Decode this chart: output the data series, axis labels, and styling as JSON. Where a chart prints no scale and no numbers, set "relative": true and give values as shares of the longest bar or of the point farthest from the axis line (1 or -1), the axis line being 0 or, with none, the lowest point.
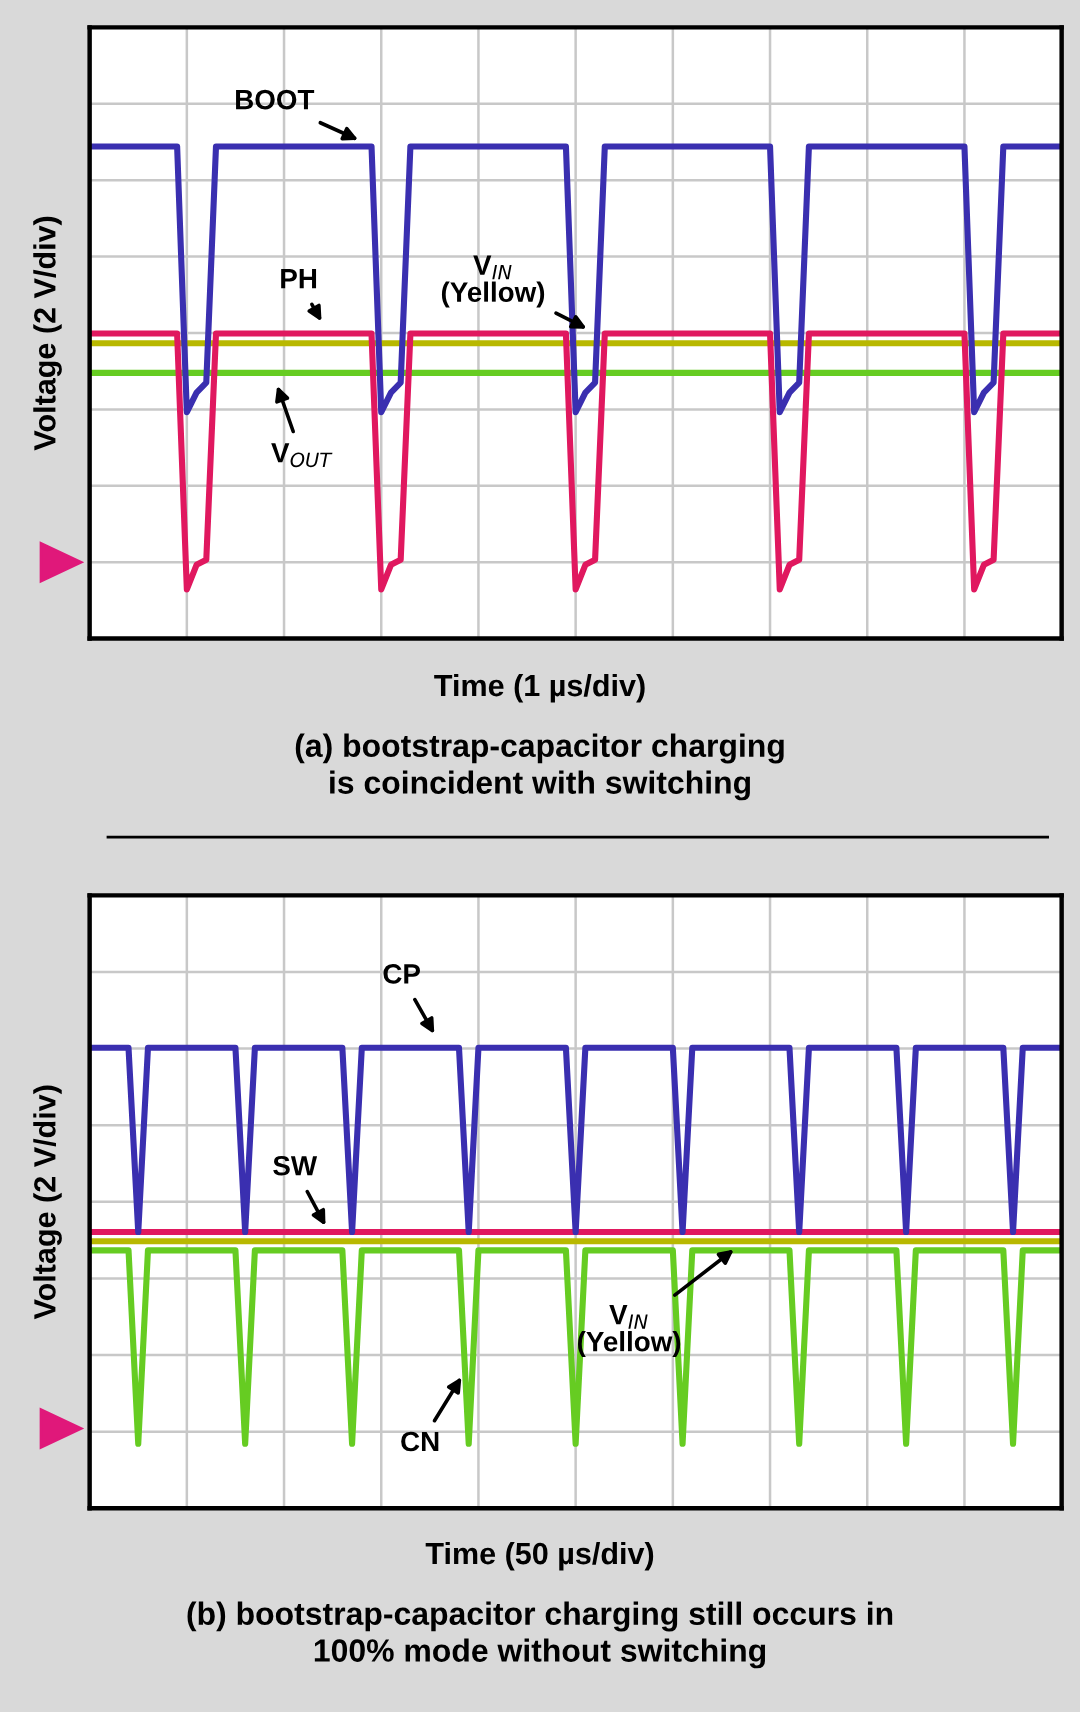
{
  "chart_data": [
    {
      "type": "line",
      "relative": true,
      "grid": true,
      "tick_labels": false,
      "title": "(a) bootstrap-capacitor charging\nis coincident with switching",
      "xlabel": "Time (1 µs/div)",
      "ylabel": "Voltage (2 V/div)",
      "categories": [
        null,
        null,
        null,
        null,
        null,
        null,
        null,
        null,
        null,
        null,
        null,
        null,
        null,
        null,
        null,
        null,
        null,
        null,
        null,
        null,
        null,
        null,
        null,
        null,
        null,
        null,
        null,
        null,
        null,
        null,
        null,
        null,
        null,
        null,
        null,
        null,
        null,
        null,
        null,
        null,
        null,
        null,
        null,
        null,
        null,
        null,
        null,
        null,
        null,
        null,
        null,
        null,
        null,
        null,
        null,
        null,
        null,
        null,
        null,
        null,
        null,
        null,
        null,
        null,
        null,
        null,
        null,
        null,
        null,
        null,
        null,
        null,
        null,
        null,
        null,
        null,
        null,
        null,
        null,
        null,
        null,
        null,
        null,
        null,
        null,
        null,
        null,
        null,
        null,
        null,
        null,
        null,
        null,
        null,
        null,
        null,
        null,
        null,
        null,
        null,
        null
      ],
      "series": [
        {
          "name": "V$_{IN}$\n(Yellow)",
          "color": "#b8b800",
          "values": [
            0.6,
            0.6,
            0.6,
            0.6,
            0.6,
            0.6,
            0.6,
            0.6,
            0.6,
            0.6,
            0.6,
            0.6,
            0.6,
            0.6,
            0.6,
            0.6,
            0.6,
            0.6,
            0.6,
            0.6,
            0.6,
            0.6,
            0.6,
            0.6,
            0.6,
            0.6,
            0.6,
            0.6,
            0.6,
            0.6,
            0.6,
            0.6,
            0.6,
            0.6,
            0.6,
            0.6,
            0.6,
            0.6,
            0.6,
            0.6,
            0.6,
            0.6,
            0.6,
            0.6,
            0.6,
            0.6,
            0.6,
            0.6,
            0.6,
            0.6,
            0.6,
            0.6,
            0.6,
            0.6,
            0.6,
            0.6,
            0.6,
            0.6,
            0.6,
            0.6,
            0.6,
            0.6,
            0.6,
            0.6,
            0.6,
            0.6,
            0.6,
            0.6,
            0.6,
            0.6,
            0.6,
            0.6,
            0.6,
            0.6,
            0.6,
            0.6,
            0.6,
            0.6,
            0.6,
            0.6,
            0.6,
            0.6,
            0.6,
            0.6,
            0.6,
            0.6,
            0.6,
            0.6,
            0.6,
            0.6,
            0.6,
            0.6,
            0.6,
            0.6,
            0.6,
            0.6,
            0.6,
            0.6,
            0.6,
            0.6,
            0.6
          ]
        },
        {
          "name": "V$_{OUT}$",
          "color": "#66cc22",
          "values": [
            0.54,
            0.54,
            0.54,
            0.54,
            0.54,
            0.54,
            0.54,
            0.54,
            0.54,
            0.54,
            0.54,
            0.54,
            0.54,
            0.54,
            0.54,
            0.54,
            0.54,
            0.54,
            0.54,
            0.54,
            0.54,
            0.54,
            0.54,
            0.54,
            0.54,
            0.54,
            0.54,
            0.54,
            0.54,
            0.54,
            0.54,
            0.54,
            0.54,
            0.54,
            0.54,
            0.54,
            0.54,
            0.54,
            0.54,
            0.54,
            0.54,
            0.54,
            0.54,
            0.54,
            0.54,
            0.54,
            0.54,
            0.54,
            0.54,
            0.54,
            0.54,
            0.54,
            0.54,
            0.54,
            0.54,
            0.54,
            0.54,
            0.54,
            0.54,
            0.54,
            0.54,
            0.54,
            0.54,
            0.54,
            0.54,
            0.54,
            0.54,
            0.54,
            0.54,
            0.54,
            0.54,
            0.54,
            0.54,
            0.54,
            0.54,
            0.54,
            0.54,
            0.54,
            0.54,
            0.54,
            0.54,
            0.54,
            0.54,
            0.54,
            0.54,
            0.54,
            0.54,
            0.54,
            0.54,
            0.54,
            0.54,
            0.54,
            0.54,
            0.54,
            0.54,
            0.54,
            0.54,
            0.54,
            0.54,
            0.54,
            0.54
          ]
        },
        {
          "name": "BOOT",
          "color": "#3a2fb0",
          "values": [
            1,
            1,
            1,
            1,
            1,
            1,
            1,
            1,
            1,
            1,
            0.46,
            0.5,
            0.52,
            1,
            1,
            1,
            1,
            1,
            1,
            1,
            1,
            1,
            1,
            1,
            1,
            1,
            1,
            1,
            1,
            1,
            0.46,
            0.5,
            0.52,
            1,
            1,
            1,
            1,
            1,
            1,
            1,
            1,
            1,
            1,
            1,
            1,
            1,
            1,
            1,
            1,
            1,
            0.46,
            0.5,
            0.52,
            1,
            1,
            1,
            1,
            1,
            1,
            1,
            1,
            1,
            1,
            1,
            1,
            1,
            1,
            1,
            1,
            1,
            1,
            0.46,
            0.5,
            0.52,
            1,
            1,
            1,
            1,
            1,
            1,
            1,
            1,
            1,
            1,
            1,
            1,
            1,
            1,
            1,
            1,
            1,
            0.46,
            0.5,
            0.52,
            1,
            1,
            1,
            1,
            1,
            1,
            1
          ]
        },
        {
          "name": "PH",
          "color": "#e0185f",
          "values": [
            0.62,
            0.62,
            0.62,
            0.62,
            0.62,
            0.62,
            0.62,
            0.62,
            0.62,
            0.62,
            0.1,
            0.15,
            0.16,
            0.62,
            0.62,
            0.62,
            0.62,
            0.62,
            0.62,
            0.62,
            0.62,
            0.62,
            0.62,
            0.62,
            0.62,
            0.62,
            0.62,
            0.62,
            0.62,
            0.62,
            0.1,
            0.15,
            0.16,
            0.62,
            0.62,
            0.62,
            0.62,
            0.62,
            0.62,
            0.62,
            0.62,
            0.62,
            0.62,
            0.62,
            0.62,
            0.62,
            0.62,
            0.62,
            0.62,
            0.62,
            0.1,
            0.15,
            0.16,
            0.62,
            0.62,
            0.62,
            0.62,
            0.62,
            0.62,
            0.62,
            0.62,
            0.62,
            0.62,
            0.62,
            0.62,
            0.62,
            0.62,
            0.62,
            0.62,
            0.62,
            0.62,
            0.1,
            0.15,
            0.16,
            0.62,
            0.62,
            0.62,
            0.62,
            0.62,
            0.62,
            0.62,
            0.62,
            0.62,
            0.62,
            0.62,
            0.62,
            0.62,
            0.62,
            0.62,
            0.62,
            0.62,
            0.1,
            0.15,
            0.16,
            0.62,
            0.62,
            0.62,
            0.62,
            0.62,
            0.62,
            0.62
          ]
        }
      ]
    },
    {
      "type": "line",
      "relative": true,
      "grid": true,
      "tick_labels": false,
      "title": "(b) bootstrap-capacitor charging still occurs in\n100% mode without switching",
      "xlabel": "Time (50 µs/div)",
      "ylabel": "Voltage (2 V/div)",
      "categories": [
        null,
        null,
        null,
        null,
        null,
        null,
        null,
        null,
        null,
        null,
        null,
        null,
        null,
        null,
        null,
        null,
        null,
        null,
        null,
        null,
        null,
        null,
        null,
        null,
        null,
        null,
        null,
        null,
        null,
        null,
        null,
        null,
        null,
        null,
        null,
        null,
        null,
        null,
        null,
        null,
        null,
        null,
        null,
        null,
        null,
        null,
        null,
        null,
        null,
        null,
        null,
        null,
        null,
        null,
        null,
        null,
        null,
        null,
        null,
        null,
        null,
        null,
        null,
        null,
        null,
        null,
        null,
        null,
        null,
        null,
        null,
        null,
        null,
        null,
        null,
        null,
        null,
        null,
        null,
        null,
        null,
        null,
        null,
        null,
        null,
        null,
        null,
        null,
        null,
        null,
        null,
        null,
        null,
        null,
        null,
        null,
        null,
        null,
        null,
        null,
        null
      ],
      "series": [
        {
          "name": "CN",
          "color": "#66cc22",
          "values": [
            0.56,
            0.56,
            0.56,
            0.56,
            0.56,
            0.14,
            0.56,
            0.56,
            0.56,
            0.56,
            0.56,
            0.56,
            0.56,
            0.56,
            0.56,
            0.56,
            0.14,
            0.56,
            0.56,
            0.56,
            0.56,
            0.56,
            0.56,
            0.56,
            0.56,
            0.56,
            0.56,
            0.14,
            0.56,
            0.56,
            0.56,
            0.56,
            0.56,
            0.56,
            0.56,
            0.56,
            0.56,
            0.56,
            0.56,
            0.14,
            0.56,
            0.56,
            0.56,
            0.56,
            0.56,
            0.56,
            0.56,
            0.56,
            0.56,
            0.56,
            0.14,
            0.56,
            0.56,
            0.56,
            0.56,
            0.56,
            0.56,
            0.56,
            0.56,
            0.56,
            0.56,
            0.14,
            0.56,
            0.56,
            0.56,
            0.56,
            0.56,
            0.56,
            0.56,
            0.56,
            0.56,
            0.56,
            0.56,
            0.14,
            0.56,
            0.56,
            0.56,
            0.56,
            0.56,
            0.56,
            0.56,
            0.56,
            0.56,
            0.56,
            0.14,
            0.56,
            0.56,
            0.56,
            0.56,
            0.56,
            0.56,
            0.56,
            0.56,
            0.56,
            0.56,
            0.14,
            0.56,
            0.56,
            0.56,
            0.56,
            0.56
          ]
        },
        {
          "name": "V$_{IN}$\n(Yellow)",
          "color": "#b8b800",
          "values": [
            0.58,
            0.58,
            0.58,
            0.58,
            0.58,
            0.58,
            0.58,
            0.58,
            0.58,
            0.58,
            0.58,
            0.58,
            0.58,
            0.58,
            0.58,
            0.58,
            0.58,
            0.58,
            0.58,
            0.58,
            0.58,
            0.58,
            0.58,
            0.58,
            0.58,
            0.58,
            0.58,
            0.58,
            0.58,
            0.58,
            0.58,
            0.58,
            0.58,
            0.58,
            0.58,
            0.58,
            0.58,
            0.58,
            0.58,
            0.58,
            0.58,
            0.58,
            0.58,
            0.58,
            0.58,
            0.58,
            0.58,
            0.58,
            0.58,
            0.58,
            0.58,
            0.58,
            0.58,
            0.58,
            0.58,
            0.58,
            0.58,
            0.58,
            0.58,
            0.58,
            0.58,
            0.58,
            0.58,
            0.58,
            0.58,
            0.58,
            0.58,
            0.58,
            0.58,
            0.58,
            0.58,
            0.58,
            0.58,
            0.58,
            0.58,
            0.58,
            0.58,
            0.58,
            0.58,
            0.58,
            0.58,
            0.58,
            0.58,
            0.58,
            0.58,
            0.58,
            0.58,
            0.58,
            0.58,
            0.58,
            0.58,
            0.58,
            0.58,
            0.58,
            0.58,
            0.58,
            0.58,
            0.58,
            0.58,
            0.58,
            0.58
          ]
        },
        {
          "name": "SW",
          "color": "#e0185f",
          "values": [
            0.6,
            0.6,
            0.6,
            0.6,
            0.6,
            0.6,
            0.6,
            0.6,
            0.6,
            0.6,
            0.6,
            0.6,
            0.6,
            0.6,
            0.6,
            0.6,
            0.6,
            0.6,
            0.6,
            0.6,
            0.6,
            0.6,
            0.6,
            0.6,
            0.6,
            0.6,
            0.6,
            0.6,
            0.6,
            0.6,
            0.6,
            0.6,
            0.6,
            0.6,
            0.6,
            0.6,
            0.6,
            0.6,
            0.6,
            0.6,
            0.6,
            0.6,
            0.6,
            0.6,
            0.6,
            0.6,
            0.6,
            0.6,
            0.6,
            0.6,
            0.6,
            0.6,
            0.6,
            0.6,
            0.6,
            0.6,
            0.6,
            0.6,
            0.6,
            0.6,
            0.6,
            0.6,
            0.6,
            0.6,
            0.6,
            0.6,
            0.6,
            0.6,
            0.6,
            0.6,
            0.6,
            0.6,
            0.6,
            0.6,
            0.6,
            0.6,
            0.6,
            0.6,
            0.6,
            0.6,
            0.6,
            0.6,
            0.6,
            0.6,
            0.6,
            0.6,
            0.6,
            0.6,
            0.6,
            0.6,
            0.6,
            0.6,
            0.6,
            0.6,
            0.6,
            0.6,
            0.6,
            0.6,
            0.6,
            0.6,
            0.6
          ]
        },
        {
          "name": "CP",
          "color": "#3a2fb0",
          "values": [
            1,
            1,
            1,
            1,
            1,
            0.6,
            1,
            1,
            1,
            1,
            1,
            1,
            1,
            1,
            1,
            1,
            0.6,
            1,
            1,
            1,
            1,
            1,
            1,
            1,
            1,
            1,
            1,
            0.6,
            1,
            1,
            1,
            1,
            1,
            1,
            1,
            1,
            1,
            1,
            1,
            0.6,
            1,
            1,
            1,
            1,
            1,
            1,
            1,
            1,
            1,
            1,
            0.6,
            1,
            1,
            1,
            1,
            1,
            1,
            1,
            1,
            1,
            1,
            0.6,
            1,
            1,
            1,
            1,
            1,
            1,
            1,
            1,
            1,
            1,
            1,
            0.6,
            1,
            1,
            1,
            1,
            1,
            1,
            1,
            1,
            1,
            1,
            0.6,
            1,
            1,
            1,
            1,
            1,
            1,
            1,
            1,
            1,
            1,
            0.6,
            1,
            1,
            1,
            1,
            1
          ]
        }
      ]
    }
  ]
}
